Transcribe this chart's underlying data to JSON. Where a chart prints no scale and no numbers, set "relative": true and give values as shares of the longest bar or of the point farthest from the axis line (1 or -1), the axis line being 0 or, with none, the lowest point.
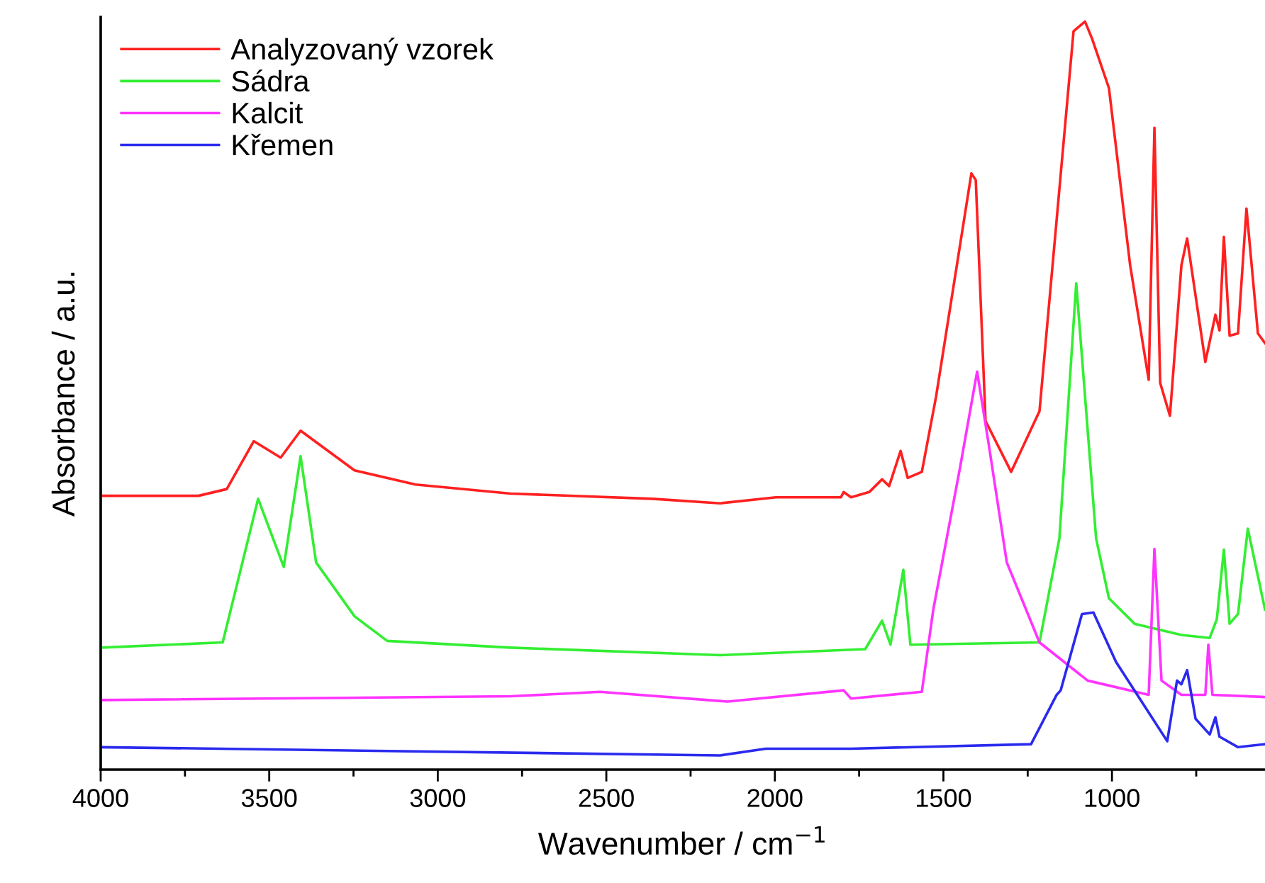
{
  "chart_data": {
    "type": "line",
    "relative": true,
    "xlabel": "Wavenumber / cm$^{−1}$",
    "ylabel": "Absorbance / a.u.",
    "xlim": [
      4000,
      546
    ],
    "xticks": [
      4000,
      {
        "value": 3750,
        "label": null
      },
      3500,
      {
        "value": 3250,
        "label": null
      },
      3000,
      {
        "value": 2750,
        "label": null
      },
      2500,
      {
        "value": 2250,
        "label": null
      },
      2000,
      {
        "value": 1750,
        "label": null
      },
      1500,
      {
        "value": 1250,
        "label": null
      },
      1000,
      {
        "value": 750,
        "label": null
      }
    ],
    "tick_labels": "x",
    "legend": "top left",
    "grid": false,
    "marker": "none",
    "line_style": "solid",
    "series": [
      {
        "name": "Analyzovaný vzorek",
        "color": "#ff2020",
        "x": [
          4000,
          3710,
          3626,
          3546,
          3466,
          3407,
          3247,
          3066,
          2784,
          2363,
          2162,
          1997,
          1804,
          1796,
          1774,
          1720,
          1682,
          1661,
          1627,
          1606,
          1564,
          1522,
          1417,
          1404,
          1375,
          1299,
          1215,
          1114,
          1080,
          1059,
          1009,
          946,
          891,
          874,
          857,
          828,
          794,
          777,
          723,
          693,
          681,
          668,
          651,
          626,
          601,
          567,
          546
        ],
        "values": [
          0.366,
          0.366,
          0.375,
          0.439,
          0.417,
          0.453,
          0.4,
          0.381,
          0.369,
          0.362,
          0.356,
          0.364,
          0.364,
          0.371,
          0.364,
          0.371,
          0.388,
          0.379,
          0.426,
          0.39,
          0.398,
          0.498,
          0.797,
          0.788,
          0.466,
          0.398,
          0.479,
          0.987,
          1.0,
          0.977,
          0.911,
          0.674,
          0.521,
          0.858,
          0.517,
          0.473,
          0.674,
          0.71,
          0.545,
          0.608,
          0.587,
          0.712,
          0.58,
          0.583,
          0.75,
          0.583,
          0.57
        ]
      },
      {
        "name": "Sádra",
        "color": "#33ee33",
        "x": [
          4000,
          3638,
          3533,
          3457,
          3407,
          3361,
          3247,
          3150,
          2784,
          2162,
          1732,
          1682,
          1657,
          1619,
          1598,
          1215,
          1156,
          1106,
          1047,
          1009,
          933,
          794,
          710,
          689,
          668,
          651,
          626,
          597,
          546
        ],
        "values": [
          0.163,
          0.17,
          0.362,
          0.271,
          0.419,
          0.277,
          0.205,
          0.172,
          0.163,
          0.153,
          0.161,
          0.199,
          0.167,
          0.267,
          0.167,
          0.17,
          0.309,
          0.65,
          0.309,
          0.229,
          0.195,
          0.18,
          0.176,
          0.201,
          0.294,
          0.195,
          0.208,
          0.322,
          0.214
        ]
      },
      {
        "name": "Kalcit",
        "color": "#ff33ff",
        "x": [
          4000,
          2784,
          2519,
          2141,
          1796,
          1774,
          1564,
          1530,
          1451,
          1400,
          1366,
          1312,
          1215,
          1072,
          891,
          874,
          853,
          794,
          723,
          714,
          702,
          546
        ],
        "values": [
          0.093,
          0.098,
          0.104,
          0.091,
          0.106,
          0.095,
          0.104,
          0.214,
          0.403,
          0.532,
          0.436,
          0.277,
          0.17,
          0.119,
          0.1,
          0.295,
          0.119,
          0.1,
          0.1,
          0.167,
          0.1,
          0.097
        ]
      },
      {
        "name": "Křemen",
        "color": "#2a2aee",
        "x": [
          4000,
          2162,
          2027,
          1774,
          1240,
          1164,
          1152,
          1089,
          1055,
          988,
          836,
          807,
          794,
          777,
          752,
          710,
          693,
          681,
          626,
          546
        ],
        "values": [
          0.03,
          0.019,
          0.028,
          0.028,
          0.034,
          0.1,
          0.106,
          0.208,
          0.21,
          0.144,
          0.038,
          0.119,
          0.114,
          0.133,
          0.068,
          0.047,
          0.07,
          0.044,
          0.03,
          0.034
        ]
      }
    ]
  }
}
